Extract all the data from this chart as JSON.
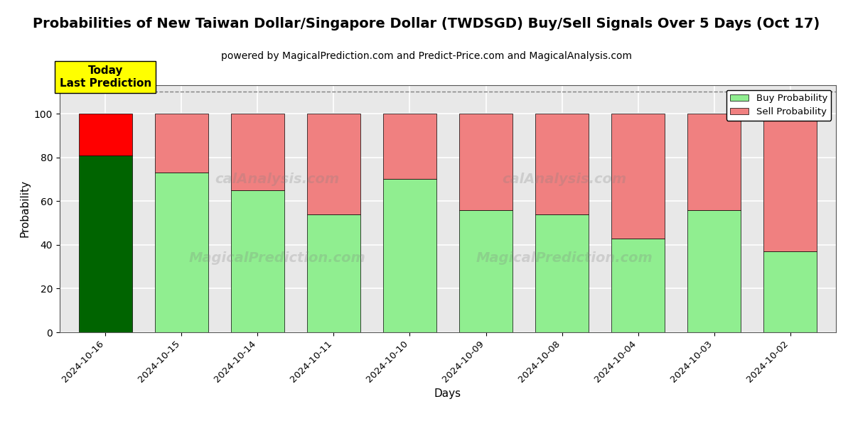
{
  "title": "Probabilities of New Taiwan Dollar/Singapore Dollar (TWDSGD) Buy/Sell Signals Over 5 Days (Oct 17)",
  "subtitle": "powered by MagicalPrediction.com and Predict-Price.com and MagicalAnalysis.com",
  "xlabel": "Days",
  "ylabel": "Probability",
  "dates": [
    "2024-10-16",
    "2024-10-15",
    "2024-10-14",
    "2024-10-11",
    "2024-10-10",
    "2024-10-09",
    "2024-10-08",
    "2024-10-04",
    "2024-10-03",
    "2024-10-02"
  ],
  "buy_values": [
    81,
    73,
    65,
    54,
    70,
    56,
    54,
    43,
    56,
    37
  ],
  "sell_values": [
    19,
    27,
    35,
    46,
    30,
    44,
    46,
    57,
    44,
    63
  ],
  "buy_color_first": "#006400",
  "sell_color_first": "#FF0000",
  "buy_color_rest": "#90EE90",
  "sell_color_rest": "#F08080",
  "today_box_color": "#FFFF00",
  "today_box_text": "Today\nLast Prediction",
  "ylim": [
    0,
    113
  ],
  "yticks": [
    0,
    20,
    40,
    60,
    80,
    100
  ],
  "dashed_line_y": 110,
  "legend_buy_label": "Buy Probability",
  "legend_sell_label": "Sell Probability",
  "facecolor": "#e8e8e8",
  "title_fontsize": 14,
  "subtitle_fontsize": 10,
  "bar_edgecolor": "#000000",
  "bar_linewidth": 0.5,
  "bar_width": 0.7
}
